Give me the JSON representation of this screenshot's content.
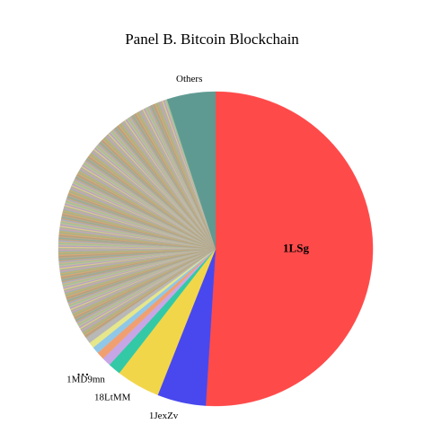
{
  "chart_data": {
    "type": "pie",
    "title": "Panel B. Bitcoin Blockchain",
    "start": "top, clockwise",
    "slices": [
      {
        "label": "1LSg",
        "value": 51.0,
        "color": "#ff4a4a",
        "label_style": "bold-inside"
      },
      {
        "label": "1JexZv",
        "value": 5.0,
        "color": "#4848ee",
        "label_style": "outside"
      },
      {
        "label": "18LtMM",
        "value": 4.5,
        "color": "#f2d64a",
        "label_style": "outside"
      },
      {
        "label": "1MD9mn",
        "value": 1.3,
        "color": "#33c9a6",
        "label_style": "outside"
      },
      {
        "label": "",
        "value": 0.9,
        "color": "#c7a6e6"
      },
      {
        "label": "",
        "value": 0.8,
        "color": "#f0a070"
      },
      {
        "label": "",
        "value": 0.7,
        "color": "#8fc7e8"
      },
      {
        "label": "",
        "value": 0.6,
        "color": "#e6e68a"
      },
      {
        "label": "",
        "value": 0.6,
        "color": "#b8b8b8"
      }
    ],
    "long_tail": {
      "value": 29.6,
      "colors": [
        "#bda98c",
        "#a8b79a",
        "#c4a57e",
        "#9fb5ae",
        "#d2b48c",
        "#a5b38c",
        "#c9bd9a",
        "#b6a07e",
        "#e0c890",
        "#8faf9f",
        "#cfa3b4",
        "#a7b0c8",
        "#c8b070",
        "#9cc49c",
        "#d8a878",
        "#b3a3c9"
      ]
    },
    "others": {
      "label": "Others",
      "value": 5.0,
      "color": "#5f9a92"
    },
    "ellipsis_label": "…"
  }
}
